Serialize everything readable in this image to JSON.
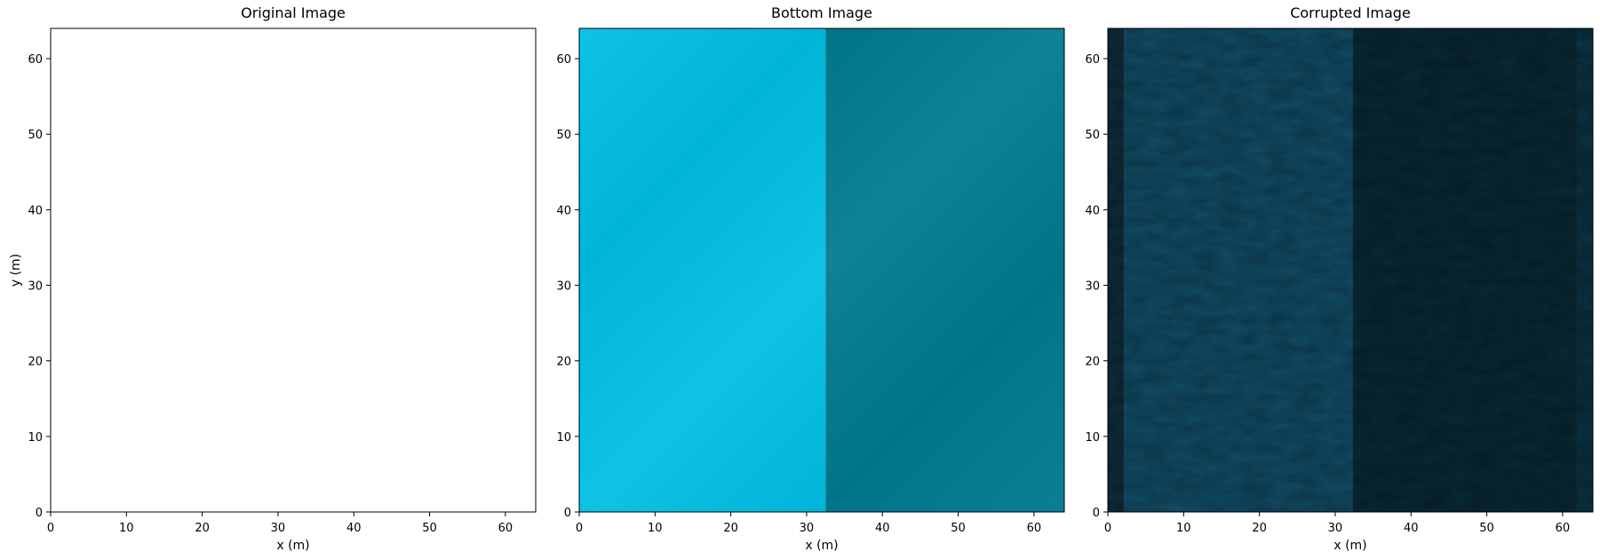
{
  "chart_data": [
    {
      "type": "heatmap",
      "title": "Original Image",
      "xlabel": "x (m)",
      "ylabel": "y (m)",
      "xlim": [
        0,
        64
      ],
      "ylim": [
        0,
        64
      ],
      "xticks": [
        "0",
        "10",
        "20",
        "30",
        "40",
        "50",
        "60"
      ],
      "yticks": [
        "0",
        "10",
        "20",
        "30",
        "40",
        "50",
        "60"
      ],
      "regions": [
        {
          "x_range": [
            0,
            64
          ],
          "color": "#ffffff"
        }
      ],
      "grid": false
    },
    {
      "type": "heatmap",
      "title": "Bottom Image",
      "xlabel": "x (m)",
      "ylabel": "",
      "xlim": [
        0,
        64
      ],
      "ylim": [
        0,
        64
      ],
      "xticks": [
        "0",
        "10",
        "20",
        "30",
        "40",
        "50",
        "60"
      ],
      "yticks": [
        "0",
        "10",
        "20",
        "30",
        "40",
        "50",
        "60"
      ],
      "regions": [
        {
          "x_range": [
            0,
            32.5
          ],
          "color": "#00bfe3"
        },
        {
          "x_range": [
            32.5,
            64
          ],
          "color": "#007a8f"
        }
      ],
      "grid": false
    },
    {
      "type": "heatmap",
      "title": "Corrupted Image",
      "xlabel": "x (m)",
      "ylabel": "",
      "xlim": [
        0,
        64
      ],
      "ylim": [
        0,
        64
      ],
      "xticks": [
        "0",
        "10",
        "20",
        "30",
        "40",
        "50",
        "60"
      ],
      "yticks": [
        "0",
        "10",
        "20",
        "30",
        "40",
        "50",
        "60"
      ],
      "regions": [
        {
          "x_range": [
            0,
            2.2
          ],
          "color": "#0e2d3c"
        },
        {
          "x_range": [
            2.2,
            32.3
          ],
          "color": "#114e68"
        },
        {
          "x_range": [
            32.3,
            62
          ],
          "color": "#082a36"
        },
        {
          "x_range": [
            62,
            64
          ],
          "color": "#0b3344"
        }
      ],
      "grid": false
    }
  ]
}
